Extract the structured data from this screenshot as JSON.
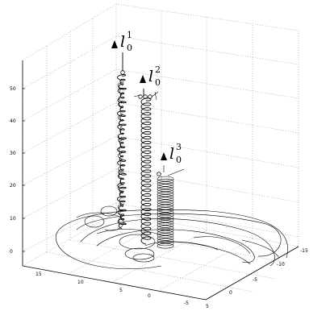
{
  "chart_data": {
    "type": "line",
    "title": "",
    "xlabel": "",
    "ylabel": "",
    "zlabel": "",
    "grid": true,
    "x_axis": {
      "ticks": [
        "15",
        "10",
        "5",
        "0",
        "-5"
      ],
      "values": [
        15,
        10,
        5,
        0,
        -5
      ],
      "range": [
        -7,
        18
      ]
    },
    "y_axis": {
      "ticks": [
        "5",
        "0",
        "-5",
        "-10",
        "-15"
      ],
      "values": [
        5,
        0,
        -5,
        -10,
        -15
      ],
      "range": [
        -15,
        5
      ]
    },
    "z_axis": {
      "ticks": [
        "0",
        "10",
        "20",
        "30",
        "40",
        "50"
      ],
      "values": [
        0,
        10,
        20,
        30,
        40,
        50
      ],
      "range": [
        -5,
        57
      ]
    },
    "series": [
      {
        "name": "l_0^1",
        "label": "l",
        "sup": "1",
        "sub": "0",
        "top_height": 57,
        "coil_height_range": [
          5,
          54
        ]
      },
      {
        "name": "l_0^2",
        "label": "l",
        "sup": "2",
        "sub": "0",
        "top_height": 49,
        "coil_height_range": [
          5,
          48
        ]
      },
      {
        "name": "l_0^3",
        "label": "l",
        "sup": "3",
        "sub": "0",
        "top_height": 24,
        "coil_height_range": [
          3,
          22
        ]
      }
    ]
  }
}
